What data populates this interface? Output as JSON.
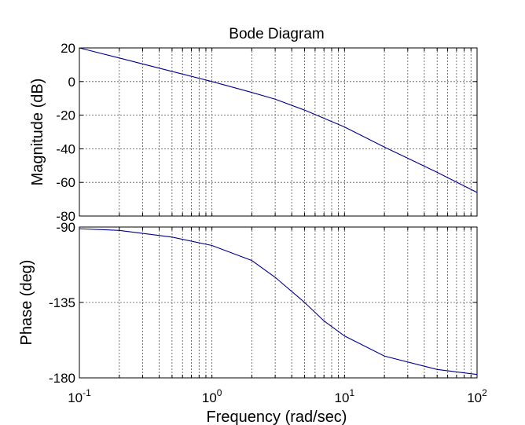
{
  "chart_data": {
    "type": "line",
    "title": "Bode Diagram",
    "xlabel": "Frequency  (rad/sec)",
    "x_scale": "log",
    "xlim": [
      0.1,
      100
    ],
    "x_ticks": [
      {
        "base": "10",
        "exp": "-1"
      },
      {
        "base": "10",
        "exp": "0"
      },
      {
        "base": "10",
        "exp": "1"
      },
      {
        "base": "10",
        "exp": "2"
      }
    ],
    "grid": true,
    "panels": [
      {
        "name": "magnitude",
        "ylabel": "Magnitude (dB)",
        "ylim": [
          -80,
          20
        ],
        "y_ticks": [
          "20",
          "0",
          "-20",
          "-40",
          "-60",
          "-80"
        ],
        "series": [
          {
            "color": "#00008b",
            "x": [
              0.1,
              0.2,
              0.5,
              1,
              2,
              3,
              5,
              10,
              20,
              50,
              100
            ],
            "y": [
              20,
              14,
              6,
              0,
              -6.5,
              -10.5,
              -17,
              -27,
              -39,
              -54,
              -66
            ]
          }
        ]
      },
      {
        "name": "phase",
        "ylabel": "Phase (deg)",
        "ylim": [
          -180,
          -90
        ],
        "y_ticks": [
          "-90",
          "-135",
          "-180"
        ],
        "series": [
          {
            "color": "#00008b",
            "x": [
              0.1,
              0.2,
              0.5,
              1,
              2,
              3,
              5,
              7,
              10,
              20,
              50,
              100
            ],
            "y": [
              -91,
              -92,
              -96,
              -101,
              -110,
              -120,
              -135,
              -146,
              -155,
              -167,
              -175,
              -178
            ]
          }
        ]
      }
    ]
  }
}
